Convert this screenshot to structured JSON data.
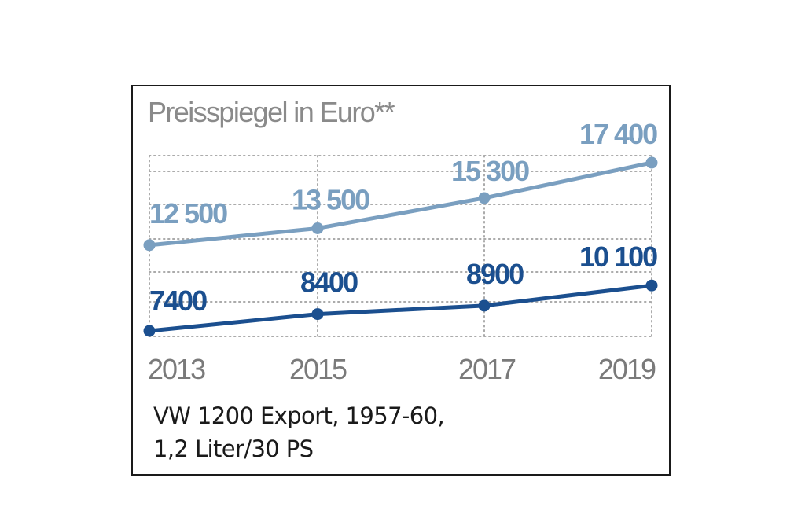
{
  "chart_data": {
    "type": "line",
    "title": "Preisspiegel in Euro**",
    "categories": [
      "2013",
      "2015",
      "2017",
      "2019"
    ],
    "ylim": [
      6000,
      20000
    ],
    "grid": "dotted",
    "series": [
      {
        "values": [
          12500,
          13500,
          15300,
          17400
        ],
        "labels": [
          "12 500",
          "13 500",
          "15 300",
          "17 400"
        ],
        "color": "#7a9fc0"
      },
      {
        "values": [
          7400,
          8400,
          8900,
          10100
        ],
        "labels": [
          "7400",
          "8400",
          "8900",
          "10 100"
        ],
        "color": "#1b4f8f"
      }
    ]
  },
  "caption": {
    "line1": "VW 1200 Export, 1957-60,",
    "line2": "1,2 Liter/30 PS"
  },
  "colors": {
    "tick_text": "#7a7a7a",
    "grid": "#aaaaaa",
    "border": "#1a1a1a"
  }
}
